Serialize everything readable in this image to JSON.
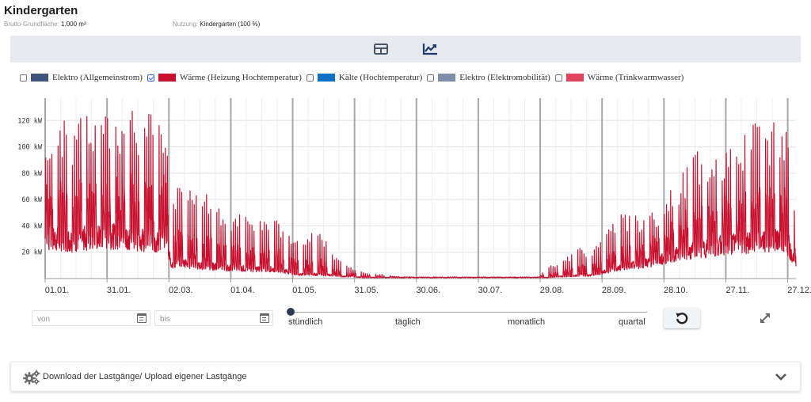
{
  "page": {
    "title": "Kindergarten",
    "area_label": "Brutto-Grundfläche:",
    "area_value": "1.000 m²",
    "usage_label": "Nutzung:",
    "usage_value": "Kindergarten (100 %)"
  },
  "toolbar": {
    "table_view_icon": "table-icon",
    "chart_view_icon": "line-chart-icon",
    "active": "chart"
  },
  "legend": [
    {
      "label": "Elektro (Allgemeinstrom)",
      "color": "#3c5579",
      "checked": false
    },
    {
      "label": "Wärme (Heizung Hochtemperatur)",
      "color": "#c8102e",
      "checked": true
    },
    {
      "label": "Kälte (Hochtemperatur)",
      "color": "#0b6fc6",
      "checked": false
    },
    {
      "label": "Elektro (Elektromobilität)",
      "color": "#7f8fa9",
      "checked": false
    },
    {
      "label": "Wärme (Trinkwarmwasser)",
      "color": "#e0455d",
      "checked": false
    }
  ],
  "chart_data": {
    "type": "line",
    "title": "",
    "xlabel": "",
    "ylabel": "",
    "unit": "kW",
    "ylim": [
      0,
      137
    ],
    "y_ticks": [
      20,
      40,
      60,
      80,
      100,
      120
    ],
    "y_tick_labels": [
      "20 kW",
      "40 kW",
      "60 kW",
      "80 kW",
      "100 kW",
      "120 kW"
    ],
    "x_tick_labels": [
      "01.01.",
      "31.01.",
      "02.03.",
      "01.04.",
      "01.05.",
      "31.05.",
      "30.06.",
      "30.07.",
      "29.08.",
      "28.09.",
      "28.10.",
      "27.11.",
      "27.12."
    ],
    "x_tick_days": [
      1,
      31,
      61,
      91,
      121,
      151,
      181,
      211,
      241,
      271,
      301,
      331,
      361
    ],
    "x_range_days": [
      1,
      365
    ],
    "grid": true,
    "series": [
      {
        "name": "Wärme (Heizung Hochtemperatur)",
        "color": "#c8102e",
        "resolution": "stündlich",
        "envelope_day_of_year": [
          1,
          5,
          10,
          15,
          20,
          25,
          30,
          35,
          40,
          45,
          50,
          55,
          60,
          62,
          66,
          70,
          75,
          80,
          85,
          90,
          95,
          100,
          105,
          110,
          115,
          120,
          123,
          126,
          130,
          135,
          140,
          145,
          150,
          155,
          160,
          170,
          180,
          190,
          200,
          210,
          220,
          230,
          240,
          245,
          250,
          255,
          260,
          265,
          270,
          275,
          280,
          285,
          290,
          295,
          300,
          305,
          310,
          315,
          320,
          325,
          330,
          335,
          340,
          345,
          350,
          355,
          360,
          365
        ],
        "daily_peak_kw": [
          125,
          122,
          120,
          118,
          124,
          126,
          128,
          130,
          131,
          133,
          134,
          135,
          136,
          68,
          74,
          72,
          68,
          64,
          58,
          52,
          50,
          48,
          47,
          46,
          44,
          38,
          30,
          28,
          40,
          35,
          20,
          12,
          8,
          5,
          4,
          2,
          1,
          1,
          1,
          1,
          1,
          1,
          1,
          10,
          12,
          18,
          25,
          20,
          28,
          45,
          52,
          50,
          46,
          52,
          55,
          75,
          82,
          95,
          100,
          102,
          105,
          108,
          110,
          118,
          120,
          122,
          118,
          60
        ],
        "daily_base_kw": [
          38,
          38,
          37,
          36,
          38,
          38,
          40,
          40,
          40,
          38,
          36,
          34,
          34,
          14,
          15,
          14,
          12,
          12,
          11,
          10,
          10,
          9,
          9,
          9,
          8,
          6,
          4,
          4,
          4,
          4,
          3,
          2,
          2,
          1,
          1,
          1,
          1,
          1,
          1,
          1,
          1,
          1,
          1,
          1,
          2,
          2,
          3,
          3,
          5,
          8,
          10,
          12,
          14,
          16,
          18,
          22,
          24,
          26,
          28,
          30,
          32,
          33,
          34,
          35,
          36,
          36,
          34,
          16
        ]
      }
    ]
  },
  "controls": {
    "from_placeholder": "von",
    "to_placeholder": "bis",
    "resolution_options": [
      "stündlich",
      "täglich",
      "monatlich",
      "quartal"
    ],
    "resolution_selected": "stündlich"
  },
  "download": {
    "label": "Download der Lastgänge/ Upload eigener Lastgänge"
  }
}
